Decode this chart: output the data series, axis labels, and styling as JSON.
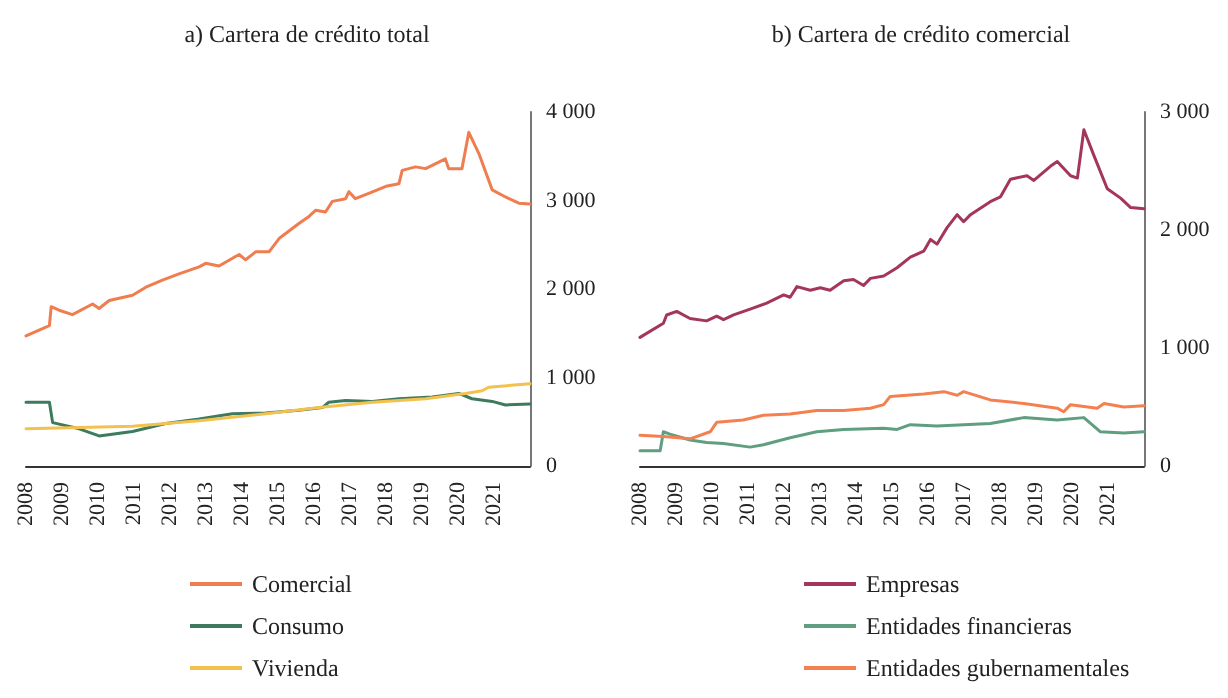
{
  "chart_data": [
    {
      "type": "line",
      "title": "a) Cartera de crédito total",
      "xlim": [
        2008,
        2022
      ],
      "xticks": [
        2008,
        2009,
        2010,
        2011,
        2012,
        2013,
        2014,
        2015,
        2016,
        2017,
        2018,
        2019,
        2020,
        2021
      ],
      "ylim": [
        0,
        4000
      ],
      "yticks": [
        {
          "value": 0,
          "label": "0"
        },
        {
          "value": 1000,
          "label": "1 000"
        },
        {
          "value": 2000,
          "label": "2 000"
        },
        {
          "value": 3000,
          "label": "3 000"
        },
        {
          "value": 4000,
          "label": "4 000"
        }
      ],
      "grid": false,
      "legend": "bottom",
      "marker": "none",
      "line_style": "solid",
      "series": [
        {
          "name": "Comercial",
          "color": "#ef7d4f",
          "x": [
            2008,
            2008.65,
            2008.7,
            2008.92,
            2009.29,
            2009.85,
            2010.03,
            2010.31,
            2010.96,
            2011.33,
            2011.79,
            2012.25,
            2012.81,
            2012.99,
            2013.36,
            2013.92,
            2014.1,
            2014.38,
            2014.75,
            2015.03,
            2015.58,
            2015.86,
            2016.05,
            2016.32,
            2016.51,
            2016.88,
            2016.97,
            2017.15,
            2017.52,
            2018.0,
            2018.36,
            2018.45,
            2018.82,
            2019.1,
            2019.65,
            2019.74,
            2020.11,
            2020.3,
            2020.58,
            2020.95,
            2021.32,
            2021.69,
            2022.0
          ],
          "values": [
            1470,
            1585,
            1800,
            1760,
            1710,
            1830,
            1780,
            1870,
            1930,
            2020,
            2100,
            2170,
            2250,
            2290,
            2260,
            2390,
            2330,
            2420,
            2420,
            2570,
            2740,
            2820,
            2890,
            2870,
            2990,
            3020,
            3100,
            3020,
            3080,
            3160,
            3190,
            3340,
            3380,
            3360,
            3470,
            3360,
            3360,
            3770,
            3530,
            3120,
            3040,
            2970,
            2960
          ]
        },
        {
          "name": "Consumo",
          "color": "#3d7a5e",
          "x": [
            2008,
            2008.65,
            2008.74,
            2009.48,
            2010.03,
            2010.96,
            2011.88,
            2012.81,
            2013.73,
            2014.66,
            2015.58,
            2016.23,
            2016.41,
            2016.88,
            2017.62,
            2018.36,
            2019.28,
            2020.02,
            2020.39,
            2020.95,
            2021.32,
            2022.0
          ],
          "values": [
            720,
            720,
            490,
            420,
            340,
            390,
            480,
            530,
            590,
            600,
            630,
            660,
            720,
            740,
            730,
            760,
            780,
            820,
            760,
            730,
            690,
            700
          ]
        },
        {
          "name": "Vivienda",
          "color": "#f2c14e",
          "x": [
            2008,
            2010.96,
            2012.81,
            2014.66,
            2016.14,
            2017.62,
            2019.1,
            2020.21,
            2020.67,
            2020.85,
            2022.0
          ],
          "values": [
            420,
            450,
            510,
            590,
            660,
            720,
            760,
            820,
            850,
            890,
            930
          ]
        }
      ]
    },
    {
      "type": "line",
      "title": "b) Cartera de crédito comercial",
      "xlim": [
        2008,
        2022
      ],
      "xticks": [
        2008,
        2009,
        2010,
        2011,
        2012,
        2013,
        2014,
        2015,
        2016,
        2017,
        2018,
        2019,
        2020,
        2021
      ],
      "ylim": [
        0,
        3000
      ],
      "yticks": [
        {
          "value": 0,
          "label": "0"
        },
        {
          "value": 1000,
          "label": "1 000"
        },
        {
          "value": 2000,
          "label": "2 000"
        },
        {
          "value": 3000,
          "label": "3 000"
        }
      ],
      "grid": false,
      "legend": "bottom",
      "marker": "none",
      "line_style": "solid",
      "series": [
        {
          "name": "Empresas",
          "color": "#a3365a",
          "x": [
            2008,
            2008.65,
            2008.74,
            2009.02,
            2009.39,
            2009.85,
            2010.13,
            2010.32,
            2010.6,
            2011.06,
            2011.52,
            2011.99,
            2012.17,
            2012.36,
            2012.73,
            2013.01,
            2013.28,
            2013.66,
            2013.93,
            2014.21,
            2014.4,
            2014.77,
            2015.14,
            2015.51,
            2015.88,
            2016.07,
            2016.25,
            2016.53,
            2016.81,
            2016.99,
            2017.18,
            2017.73,
            2018.01,
            2018.29,
            2018.75,
            2018.94,
            2019.4,
            2019.59,
            2019.96,
            2020.15,
            2020.33,
            2020.61,
            2020.98,
            2021.35,
            2021.63,
            2022.0
          ],
          "values": [
            1090,
            1210,
            1280,
            1310,
            1250,
            1230,
            1270,
            1240,
            1280,
            1330,
            1380,
            1450,
            1430,
            1520,
            1490,
            1510,
            1490,
            1570,
            1580,
            1530,
            1590,
            1610,
            1680,
            1770,
            1820,
            1920,
            1880,
            2020,
            2130,
            2070,
            2130,
            2240,
            2280,
            2430,
            2460,
            2420,
            2540,
            2580,
            2460,
            2440,
            2850,
            2630,
            2350,
            2270,
            2190,
            2180
          ]
        },
        {
          "name": "Entidades financieras",
          "color": "#5f9e80",
          "x": [
            2008,
            2008.56,
            2008.65,
            2008.83,
            2009.39,
            2009.85,
            2010.32,
            2011.06,
            2011.43,
            2012.17,
            2012.91,
            2013.66,
            2014.77,
            2015.14,
            2015.51,
            2016.25,
            2016.99,
            2017.73,
            2018.66,
            2019.59,
            2020.33,
            2020.79,
            2021.44,
            2022.0
          ],
          "values": [
            130,
            130,
            290,
            270,
            220,
            200,
            190,
            160,
            180,
            240,
            290,
            310,
            320,
            310,
            350,
            340,
            350,
            360,
            410,
            390,
            410,
            290,
            280,
            290
          ]
        },
        {
          "name": "Entidades gubernamentales",
          "color": "#f4804f",
          "x": [
            2008,
            2008.65,
            2009.39,
            2009.95,
            2010.13,
            2010.87,
            2011.43,
            2012.17,
            2012.91,
            2013.66,
            2014.4,
            2014.77,
            2014.95,
            2015.88,
            2016.44,
            2016.81,
            2016.99,
            2017.73,
            2018.66,
            2019.59,
            2019.77,
            2019.96,
            2020.7,
            2020.89,
            2021.44,
            2022.0
          ],
          "values": [
            260,
            250,
            230,
            290,
            370,
            390,
            430,
            440,
            470,
            470,
            490,
            520,
            590,
            610,
            630,
            600,
            630,
            560,
            530,
            490,
            460,
            520,
            490,
            530,
            500,
            510
          ]
        }
      ]
    }
  ]
}
